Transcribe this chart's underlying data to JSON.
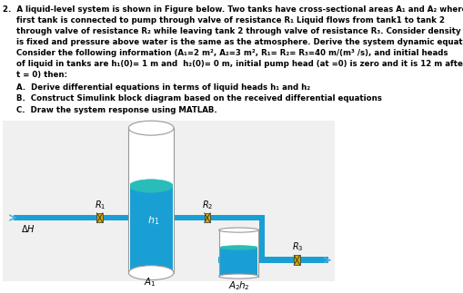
{
  "bg_color": "#ffffff",
  "text_color": "#000000",
  "tank1_body_color": "#1a9fd4",
  "tank1_liquid_top_color": "#2abcb8",
  "tank2_body_color": "#1a9fd4",
  "tank2_liquid_top_color": "#2abcb8",
  "pipe_color": "#1a9fd4",
  "valve_color": "#d4a800",
  "arrow_color": "#4ab0e0",
  "tank_border_color": "#999999",
  "diagram_bg": "#ffffff",
  "line1": "2.  A liquid-level system is shown in Figure below. Two tanks have cross-sectional areas A₁ and A₂ where",
  "line2": "     first tank is connected to pump through valve of resistance R₁ Liquid flows from tank1 to tank 2",
  "line3": "     through valve of resistance R₂ while leaving tank 2 through valve of resistance R₃. Consider density",
  "line4": "     is fixed and pressure above water is the same as the atmosphere. Derive the system dynamic equations.",
  "line5": "     Consider the following information (A₁=2 m², A₂=3 m², R₁= R₂= R₃=40 m/(m³ /s), and initial heads",
  "line6": "     of liquid in tanks are h₁(0)= 1 m and  h₂(0)= 0 m, initial pump head (at =0) is zero and it is 12 m after",
  "line7": "     t = 0) then:",
  "itemA": "     A.  Derive differential equations in terms of liquid heads h₁ and h₂",
  "itemB": "     B.  Construct Simulink block diagram based on the received differential equations",
  "itemC": "     C.  Draw the system response using MATLAB."
}
